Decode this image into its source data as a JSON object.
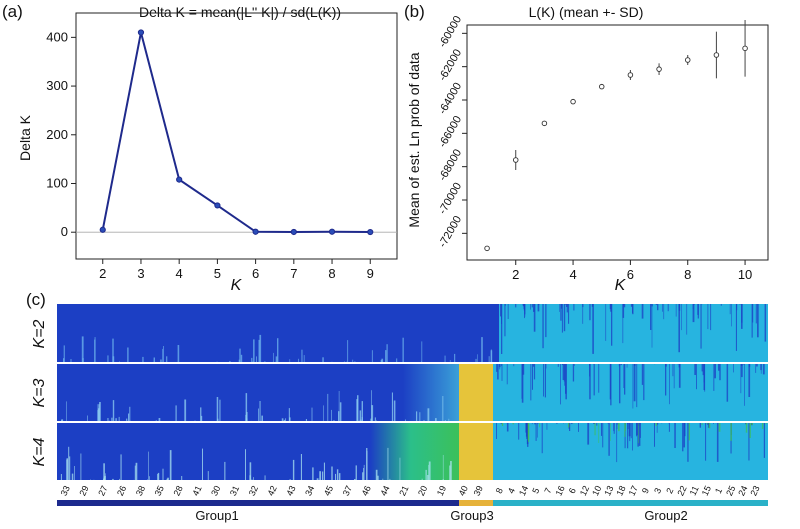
{
  "chart_data": [
    {
      "type": "line",
      "panel": "(a)",
      "title": "Delta K = mean(|L'' K|) / sd(L(K))",
      "xlabel": "K",
      "ylabel": "Delta K",
      "x": [
        2,
        3,
        4,
        5,
        6,
        7,
        8,
        9
      ],
      "y": [
        5,
        410,
        108,
        55,
        1,
        0.5,
        1,
        0.3
      ],
      "xlim": [
        1.3,
        9.7
      ],
      "ylim": [
        -55,
        450
      ],
      "xticks": [
        "2",
        "3",
        "4",
        "5",
        "6",
        "7",
        "8",
        "9"
      ],
      "yticks": [
        "0",
        "100",
        "200",
        "300",
        "400"
      ],
      "colors": {
        "line": "#1f2a8c",
        "marker": "#2b4db8"
      }
    },
    {
      "type": "scatter",
      "panel": "(b)",
      "title": "L(K) (mean +- SD)",
      "xlabel": "K",
      "ylabel": "Mean of est. Ln prob of data",
      "x": [
        1,
        2,
        3,
        4,
        5,
        6,
        7,
        8,
        9,
        10
      ],
      "y": [
        -72900,
        -67600,
        -65400,
        -64100,
        -63200,
        -62500,
        -62150,
        -61600,
        -61300,
        -60900
      ],
      "sd": [
        0,
        600,
        100,
        100,
        100,
        300,
        350,
        300,
        1400,
        1700
      ],
      "xlim": [
        0.3,
        10.8
      ],
      "ylim": [
        -73600,
        -59500
      ],
      "xticks": [
        "2",
        "4",
        "6",
        "8",
        "10"
      ],
      "yticks": [
        "-60000",
        "-62000",
        "-64000",
        "-66000",
        "-68000",
        "-70000",
        "-72000"
      ]
    },
    {
      "type": "bar",
      "panel": "(c)",
      "rows": [
        "K=2",
        "K=3",
        "K=4"
      ],
      "colors": {
        "blue": "#1c3fc4",
        "cyan": "#27b4e0",
        "yellow": "#e6c43a",
        "green": "#2fbf6a",
        "navy": "#1d2a8e",
        "teal": "#2ab1c8"
      },
      "individuals": [
        "33",
        "29",
        "27",
        "26",
        "38",
        "35",
        "28",
        "41",
        "30",
        "31",
        "32",
        "42",
        "43",
        "34",
        "45",
        "37",
        "46",
        "44",
        "21",
        "20",
        "19",
        "40",
        "39",
        "8",
        "4",
        "14",
        "5",
        "7",
        "16",
        "6",
        "12",
        "10",
        "13",
        "18",
        "17",
        "9",
        "3",
        "2",
        "22",
        "11",
        "15",
        "1",
        "25",
        "24",
        "23"
      ],
      "groups": [
        {
          "name": "Group1",
          "color": "#1d2a8e"
        },
        {
          "name": "Group3",
          "color": "#e6b23a"
        },
        {
          "name": "Group2",
          "color": "#2ab1c8"
        }
      ]
    }
  ]
}
